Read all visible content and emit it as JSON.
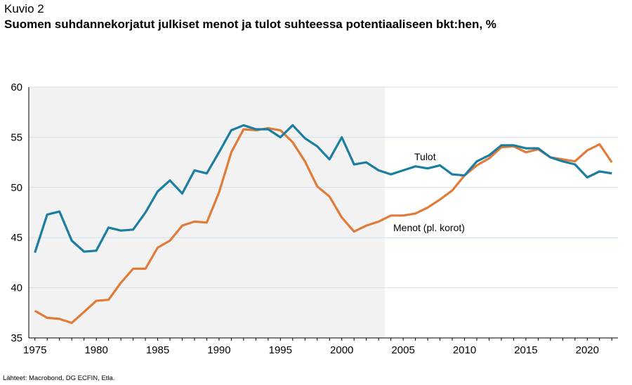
{
  "header": {
    "figure_label": "Kuvio 2",
    "title": "Suomen suhdannekorjatut julkiset menot ja tulot suhteessa potentiaaliseen bkt:hen, %"
  },
  "footer": {
    "source": "Lähteet: Macrobond, DG ECFIN, Etla."
  },
  "chart_data": {
    "type": "line",
    "xlim": [
      1974.5,
      2022.5
    ],
    "ylim": [
      35,
      60
    ],
    "yticks": [
      35,
      40,
      45,
      50,
      55,
      60
    ],
    "xticks": [
      1975,
      1980,
      1985,
      1990,
      1995,
      2000,
      2005,
      2010,
      2015,
      2020
    ],
    "grid": true,
    "shaded_region": [
      1974.5,
      2003.5
    ],
    "colors": {
      "Tulot": "#1b7da0",
      "Menot (pl. korot)": "#e07b39",
      "shade": "#f2f2f2",
      "grid": "#cfe0ee"
    },
    "x": [
      1975,
      1976,
      1977,
      1978,
      1979,
      1980,
      1981,
      1982,
      1983,
      1984,
      1985,
      1986,
      1987,
      1988,
      1989,
      1990,
      1991,
      1992,
      1993,
      1994,
      1995,
      1996,
      1997,
      1998,
      1999,
      2000,
      2001,
      2002,
      2003,
      2004,
      2005,
      2006,
      2007,
      2008,
      2009,
      2010,
      2011,
      2012,
      2013,
      2014,
      2015,
      2016,
      2017,
      2018,
      2019,
      2020,
      2021,
      2022
    ],
    "series": [
      {
        "name": "Tulot",
        "values": [
          43.5,
          47.3,
          47.6,
          44.7,
          43.6,
          43.7,
          46.0,
          45.7,
          45.8,
          47.5,
          49.6,
          50.7,
          49.4,
          51.7,
          51.4,
          53.5,
          55.7,
          56.2,
          55.8,
          55.8,
          55.0,
          56.2,
          54.9,
          54.1,
          52.8,
          55.0,
          52.3,
          52.5,
          51.7,
          51.3,
          51.7,
          52.1,
          51.9,
          52.2,
          51.3,
          51.2,
          52.6,
          53.2,
          54.2,
          54.2,
          53.9,
          53.9,
          53.0,
          52.6,
          52.3,
          51.0,
          51.6,
          51.4
        ]
      },
      {
        "name": "Menot (pl. korot)",
        "values": [
          37.7,
          37.0,
          36.9,
          36.5,
          37.6,
          38.7,
          38.8,
          40.5,
          41.9,
          41.9,
          44.0,
          44.7,
          46.2,
          46.6,
          46.5,
          49.5,
          53.5,
          55.8,
          55.7,
          55.9,
          55.7,
          54.5,
          52.6,
          50.1,
          49.1,
          47.0,
          45.6,
          46.2,
          46.6,
          47.2,
          47.2,
          47.4,
          48.0,
          48.8,
          49.7,
          51.2,
          52.2,
          52.9,
          54.0,
          54.1,
          53.5,
          53.8,
          53.0,
          52.8,
          52.6,
          53.7,
          54.3,
          52.5
        ]
      }
    ],
    "annotations": [
      "Tulot",
      "Menot (pl. korot)"
    ]
  }
}
